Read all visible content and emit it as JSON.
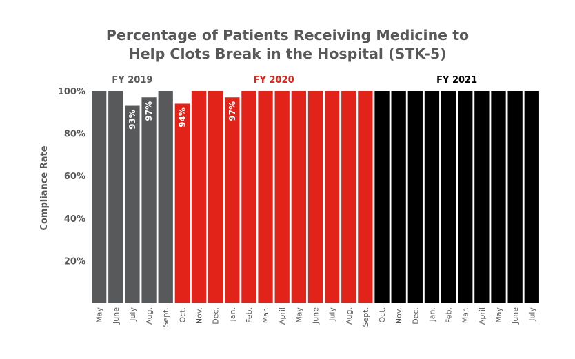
{
  "chart_data": {
    "type": "bar",
    "title": [
      "Percentage of Patients Receiving Medicine to",
      "Help Clots Break in the Hospital (STK-5)"
    ],
    "ylabel": "Compliance Rate",
    "xlabel": "",
    "ylim": [
      0,
      100
    ],
    "yticks": [
      "20%",
      "40%",
      "60%",
      "80%",
      "100%"
    ],
    "ytick_values": [
      20,
      40,
      60,
      80,
      100
    ],
    "grid": false,
    "categories": [
      "May",
      "June",
      "July",
      "Aug.",
      "Sept.",
      "Oct.",
      "Nov.",
      "Dec.",
      "Jan.",
      "Feb.",
      "Mar.",
      "April",
      "May",
      "June",
      "July",
      "Aug.",
      "Sept.",
      "Oct.",
      "Nov.",
      "Dec.",
      "Jan.",
      "Feb.",
      "Mar.",
      "April",
      "May",
      "June",
      "July"
    ],
    "values": [
      100,
      100,
      93,
      97,
      100,
      94,
      100,
      100,
      97,
      100,
      100,
      100,
      100,
      100,
      100,
      100,
      100,
      100,
      100,
      100,
      100,
      100,
      100,
      100,
      100,
      100,
      100
    ],
    "data_labels": [
      "",
      "",
      "93%",
      "97%",
      "",
      "94%",
      "",
      "",
      "97%",
      "",
      "",
      "",
      "",
      "",
      "",
      "",
      "",
      "",
      "",
      "",
      "",
      "",
      "",
      "",
      "",
      "",
      ""
    ],
    "groups": [
      {
        "label": "FY 2019",
        "start": 0,
        "end": 4,
        "color": "#58595b"
      },
      {
        "label": "FY 2020",
        "start": 5,
        "end": 16,
        "color": "#e2231a"
      },
      {
        "label": "FY 2021",
        "start": 17,
        "end": 26,
        "color": "#000000"
      }
    ]
  }
}
